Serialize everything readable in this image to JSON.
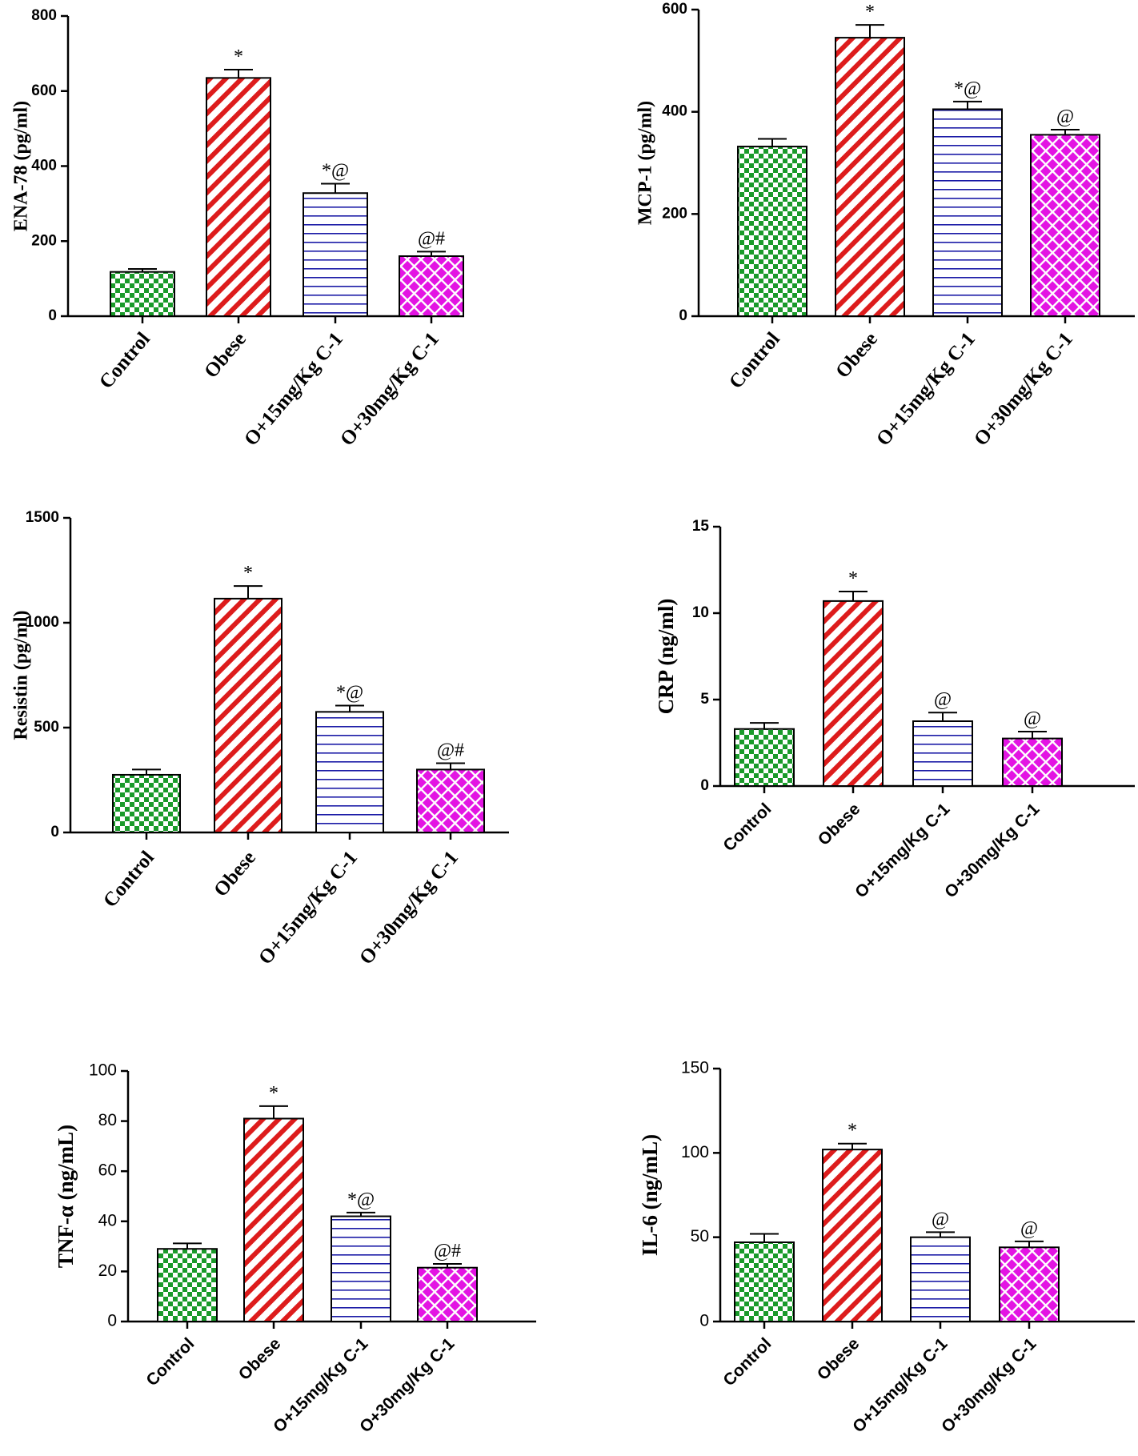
{
  "colors": {
    "control": "#1a9a2a",
    "obese": "#dd1c1c",
    "o15": "#1a1aa6",
    "o30": "#e314e3"
  },
  "chart_data": [
    {
      "type": "bar",
      "categories": [
        "Control",
        "Obese",
        "O+15mg/Kg C-1",
        "O+30mg/Kg C-1"
      ],
      "values": [
        118,
        635,
        328,
        160
      ],
      "errors": [
        8,
        22,
        25,
        12
      ],
      "annotations": [
        "",
        "*",
        "*@",
        "@#"
      ],
      "ylabel": "ENA-78 (pg/ml)",
      "ylim": [
        0,
        800
      ],
      "yticks": [
        0,
        200,
        400,
        600,
        800
      ],
      "patterns": [
        "checker",
        "diag",
        "horiz",
        "diamond"
      ]
    },
    {
      "type": "bar",
      "categories": [
        "Control",
        "Obese",
        "O+15mg/Kg C-1",
        "O+30mg/Kg C-1"
      ],
      "values": [
        332,
        545,
        405,
        355
      ],
      "errors": [
        15,
        25,
        15,
        10
      ],
      "annotations": [
        "",
        "*",
        "*@",
        "@"
      ],
      "ylabel": "MCP-1 (pg/ml)",
      "ylim": [
        0,
        600
      ],
      "yticks": [
        0,
        200,
        400,
        600
      ],
      "patterns": [
        "checker",
        "diag",
        "horiz",
        "diamond"
      ]
    },
    {
      "type": "bar",
      "categories": [
        "Control",
        "Obese",
        "O+15mg/Kg C-1",
        "O+30mg/Kg C-1"
      ],
      "values": [
        275,
        1115,
        575,
        300
      ],
      "errors": [
        25,
        60,
        30,
        30
      ],
      "annotations": [
        "",
        "*",
        "*@",
        "@#"
      ],
      "ylabel": "Resistin (pg/ml)",
      "ylim": [
        0,
        1500
      ],
      "yticks": [
        0,
        500,
        1000,
        1500
      ],
      "patterns": [
        "checker",
        "diag",
        "horiz",
        "diamond"
      ]
    },
    {
      "type": "bar",
      "categories": [
        "Control",
        "Obese",
        "O+15mg/Kg C-1",
        "O+30mg/Kg C-1"
      ],
      "values": [
        3.3,
        10.7,
        3.75,
        2.75
      ],
      "errors": [
        0.35,
        0.55,
        0.5,
        0.4
      ],
      "annotations": [
        "",
        "*",
        "@",
        "@"
      ],
      "ylabel": "CRP (ng/ml)",
      "ylim": [
        0,
        15
      ],
      "yticks": [
        0,
        5,
        10,
        15
      ],
      "patterns": [
        "checker",
        "diag",
        "horiz",
        "diamond"
      ]
    },
    {
      "type": "bar",
      "categories": [
        "Control",
        "Obese",
        "O+15mg/Kg C-1",
        "O+30mg/Kg C-1"
      ],
      "values": [
        29,
        81,
        42,
        21.5
      ],
      "errors": [
        2.2,
        5,
        1.5,
        1.5
      ],
      "annotations": [
        "",
        "*",
        "*@",
        "@#"
      ],
      "ylabel": "TNF-α (ng/mL)",
      "ylim": [
        0,
        100
      ],
      "yticks": [
        0,
        20,
        40,
        60,
        80,
        100
      ],
      "patterns": [
        "checker",
        "diag",
        "horiz",
        "diamond"
      ]
    },
    {
      "type": "bar",
      "categories": [
        "Control",
        "Obese",
        "O+15mg/Kg C-1",
        "O+30mg/Kg C-1"
      ],
      "values": [
        47,
        102,
        50,
        44
      ],
      "errors": [
        5,
        3.5,
        3,
        3.5
      ],
      "annotations": [
        "",
        "*",
        "@",
        "@"
      ],
      "ylabel": "IL-6 (ng/mL)",
      "ylim": [
        0,
        150
      ],
      "yticks": [
        0,
        50,
        100,
        150
      ],
      "patterns": [
        "checker",
        "diag",
        "horiz",
        "diamond"
      ]
    }
  ]
}
